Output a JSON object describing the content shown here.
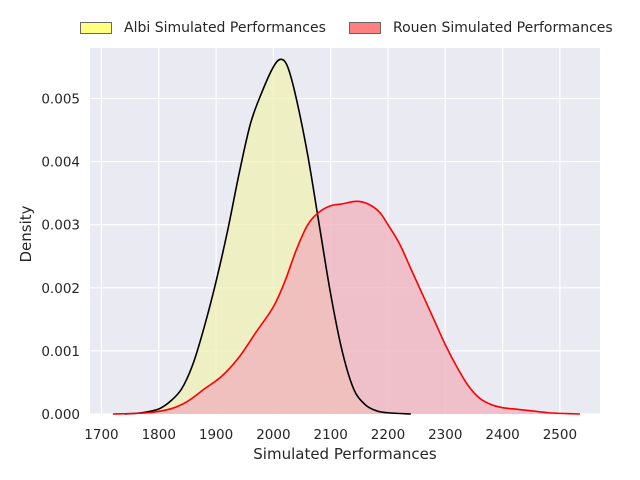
{
  "chart_data": {
    "type": "area",
    "xlabel": "Simulated Performances",
    "ylabel": "Density",
    "xlim": [
      1680,
      2570
    ],
    "ylim": [
      0,
      0.0058
    ],
    "x_ticks": [
      1700,
      1800,
      1900,
      2000,
      2100,
      2200,
      2300,
      2400,
      2500
    ],
    "y_ticks": [
      0.0,
      0.001,
      0.002,
      0.003,
      0.004,
      0.005
    ],
    "y_tick_labels": [
      "0.000",
      "0.001",
      "0.002",
      "0.003",
      "0.004",
      "0.005"
    ],
    "grid": true,
    "legend_placement": "top",
    "series": [
      {
        "name": "Albi Simulated Performances",
        "fill": "#f0f0b4",
        "swatch": "#ffff80",
        "line": "#000000",
        "points": [
          [
            1740,
            0.0
          ],
          [
            1770,
            2e-05
          ],
          [
            1800,
            8e-05
          ],
          [
            1820,
            0.0002
          ],
          [
            1840,
            0.0004
          ],
          [
            1860,
            0.0008
          ],
          [
            1880,
            0.0014
          ],
          [
            1900,
            0.0021
          ],
          [
            1920,
            0.0029
          ],
          [
            1940,
            0.0038
          ],
          [
            1960,
            0.0046
          ],
          [
            1980,
            0.0051
          ],
          [
            2000,
            0.0055
          ],
          [
            2013,
            0.00562
          ],
          [
            2025,
            0.0055
          ],
          [
            2040,
            0.005
          ],
          [
            2060,
            0.0041
          ],
          [
            2080,
            0.003
          ],
          [
            2100,
            0.0019
          ],
          [
            2120,
            0.001
          ],
          [
            2140,
            0.0004
          ],
          [
            2160,
            0.00015
          ],
          [
            2180,
            5e-05
          ],
          [
            2200,
            2e-05
          ],
          [
            2240,
            0.0
          ]
        ]
      },
      {
        "name": "Rouen Simulated Performances",
        "fill": "#f0b0bc",
        "swatch": "#ff8080",
        "line": "#ff0000",
        "points": [
          [
            1720,
            0.0
          ],
          [
            1780,
            2e-05
          ],
          [
            1820,
            8e-05
          ],
          [
            1850,
            0.0002
          ],
          [
            1880,
            0.0004
          ],
          [
            1910,
            0.0006
          ],
          [
            1940,
            0.0009
          ],
          [
            1970,
            0.0013
          ],
          [
            2000,
            0.0017
          ],
          [
            2020,
            0.0021
          ],
          [
            2040,
            0.0026
          ],
          [
            2060,
            0.003
          ],
          [
            2080,
            0.0032
          ],
          [
            2100,
            0.0033
          ],
          [
            2120,
            0.00333
          ],
          [
            2145,
            0.00337
          ],
          [
            2165,
            0.00333
          ],
          [
            2185,
            0.0032
          ],
          [
            2200,
            0.003
          ],
          [
            2220,
            0.0027
          ],
          [
            2240,
            0.0023
          ],
          [
            2260,
            0.0019
          ],
          [
            2280,
            0.0015
          ],
          [
            2300,
            0.0011
          ],
          [
            2320,
            0.00075
          ],
          [
            2340,
            0.00045
          ],
          [
            2360,
            0.00025
          ],
          [
            2380,
            0.00015
          ],
          [
            2400,
            0.0001
          ],
          [
            2420,
            8e-05
          ],
          [
            2450,
            5e-05
          ],
          [
            2480,
            2e-05
          ],
          [
            2500,
            1e-05
          ],
          [
            2535,
            0.0
          ]
        ]
      }
    ]
  }
}
